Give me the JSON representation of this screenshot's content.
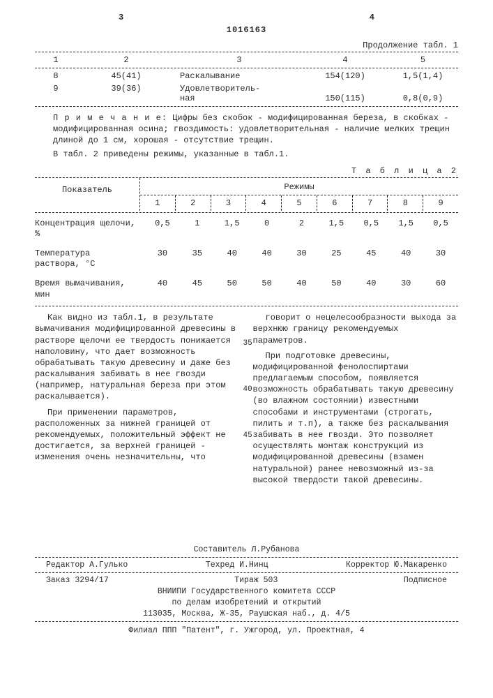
{
  "page_left_num": "3",
  "page_right_num": "4",
  "doc_number": "1016163",
  "t1_continuation": "Продолжение табл. 1",
  "t1_headers": [
    "1",
    "2",
    "3",
    "4",
    "5"
  ],
  "t1_rows": [
    {
      "c1": "8",
      "c2": "45(41)",
      "c3": "Раскалывание",
      "c4": "154(120)",
      "c5": "1,5(1,4)"
    },
    {
      "c1": "9",
      "c2": "39(36)",
      "c3": "Удовлетворитель-\nная",
      "c4": "150(115)",
      "c5": "0,8(0,9)"
    }
  ],
  "note_label": "П р и м е ч а н и е:",
  "note_text": "Цифры без скобок - модифицированная береза, в скобках - модифицированная осина; гвоздимость: удовлетворительная - наличие мелких трещин длиной до 1 см, хорошая - отсутствие трещин.",
  "note_after": "В табл. 2 приведены режимы, указанные в табл.1.",
  "t2_label": "Т а б л и ц а  2",
  "t2_indicator": "Показатель",
  "t2_modes": "Режимы",
  "t2_cols": [
    "1",
    "2",
    "3",
    "4",
    "5",
    "6",
    "7",
    "8",
    "9"
  ],
  "t2_rows": [
    {
      "label": "Концентрация щелочи, %",
      "vals": [
        "0,5",
        "1",
        "1,5",
        "0",
        "2",
        "1,5",
        "0,5",
        "1,5",
        "0,5"
      ]
    },
    {
      "label": "Температура раствора, °С",
      "vals": [
        "30",
        "35",
        "40",
        "40",
        "30",
        "25",
        "45",
        "40",
        "30"
      ]
    },
    {
      "label": "Время вымачивания, мин",
      "vals": [
        "40",
        "45",
        "50",
        "50",
        "40",
        "50",
        "40",
        "30",
        "60"
      ]
    }
  ],
  "linenums": {
    "a": "35",
    "b": "40",
    "c": "45"
  },
  "para1": "Как видно из табл.1, в результате вымачивания модифицированной древесины в растворе щелочи ее твердость понижается наполовину, что дает возможность обрабатывать такую древесину и даже без раскалывания забивать в нее гвозди (например, натуральная береза при этом раскалывается).",
  "para2": "При применении параметров, расположенных за нижней границей от рекомендуемых, положительный эффект не достигается, за верхней границей - изменения очень незначительны, что",
  "para3": "говорит о нецелесообразности выхода за верхнюю границу рекомендуемых параметров.",
  "para4": "При подготовке древесины, модифицированной фенолоспиртами предлагаемым способом, появляется возможность обрабатывать такую древесину (во влажном состоянии) известными способами и инструментами (строгать, пилить и т.п), а также без раскалывания забивать в нее гвозди. Это позволяет осуществлять монтаж конструкций из модифицированной древесины (взамен натуральной) ранее невозможный из-за высокой твердости такой древесины.",
  "footer": {
    "compiler": "Составитель Л.Рубанова",
    "editor": "Редактор А.Гулько",
    "tech": "Техред И.Нинц",
    "corrector": "Корректор Ю.Макаренко",
    "order": "Заказ 3294/17",
    "tirazh": "Тираж   503",
    "sub": "Подписное",
    "org1": "ВНИИПИ Государственного комитета СССР",
    "org2": "по делам изобретений и открытий",
    "addr": "113035, Москва, Ж-35, Раушская наб., д. 4/5",
    "branch": "Филиал ППП \"Патент\", г. Ужгород, ул. Проектная, 4"
  }
}
